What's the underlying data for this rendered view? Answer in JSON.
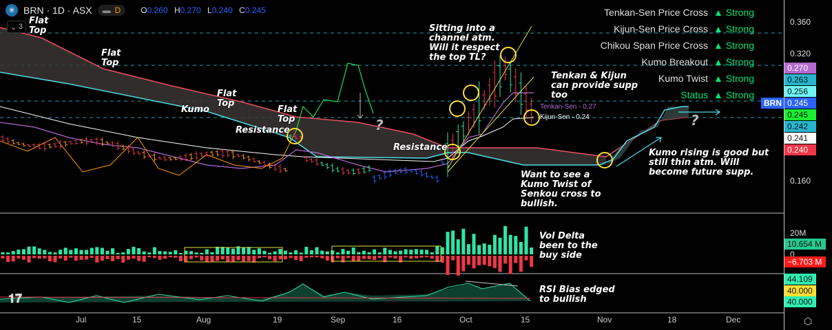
{
  "header": {
    "symbol": "BRN · 1D · ASX",
    "interval_badge": "D",
    "open_label": "O",
    "open": "0.260",
    "high_label": "H",
    "high": "0.270",
    "low_label": "L",
    "low": "0.240",
    "close_label": "C",
    "close": "0.245",
    "collapsed_count": "3"
  },
  "signals": [
    {
      "label": "Tenkan-Sen Price Cross",
      "status": "▲ Strong"
    },
    {
      "label": "Kijun-Sen Price Cross",
      "status": "▲ Strong"
    },
    {
      "label": "Chikou Span Price Cross",
      "status": "▲ Strong"
    },
    {
      "label": "Kumo Breakout",
      "status": "▲ Strong"
    },
    {
      "label": "Kumo Twist",
      "status": "▲ Strong"
    },
    {
      "label": "Status",
      "status": "▲ Strong"
    }
  ],
  "annotations": {
    "flat_top_1": "Flat\nTop",
    "flat_top_2": "Flat\nTop",
    "flat_top_3": "Flat\nTop",
    "flat_top_4": "Flat\nTop",
    "kumo": "Kumo",
    "resistance_1": "Resistance",
    "resistance_2": "Resistance",
    "question_1": "?",
    "question_2": "?",
    "channel": "Sitting into a\nchannel atm.\nWill it respect\nthe top TL?",
    "tenkan_kijun": "Tenkan & Kijun\ncan provide supp\ntoo",
    "kumo_twist": "Want to see a\nKumo Twist of\nSenkou cross to\nbullish.",
    "kumo_rising": "Kumo rising is good but\nstill thin atm. Will\nbecome future supp.",
    "vol_delta": "Vol Delta\nbeen to the\nbuy side",
    "rsi": "RSI Bias edged\nto bullish"
  },
  "line_labels": {
    "tenkan": "Tenkan-Sen - 0.27",
    "kijun": "Kijun-Sen - 0.24"
  },
  "price_axis": {
    "ticks": [
      "0.360",
      "0.320",
      "0.160"
    ],
    "tags": [
      {
        "v": "0.270",
        "bg": "#b36bd1",
        "fg": "#fff"
      },
      {
        "v": "0.263",
        "bg": "#26b6d0",
        "fg": "#111"
      },
      {
        "v": "0.256",
        "bg": "#6ef5f5",
        "fg": "#111"
      },
      {
        "v": "0.245",
        "bg": "#2962ff",
        "fg": "#fff"
      },
      {
        "v": "0.245",
        "bg": "#18f030",
        "fg": "#111"
      },
      {
        "v": "0.242",
        "bg": "#26b6d0",
        "fg": "#111"
      },
      {
        "v": "0.241",
        "bg": "#ffffff",
        "fg": "#111"
      },
      {
        "v": "0.240",
        "bg": "#f23645",
        "fg": "#fff"
      }
    ],
    "symbol_tag": "BRN"
  },
  "volume_axis": {
    "ticks": [
      "20M",
      "0"
    ],
    "buy": "10.654 M",
    "sell": "−6.703 M"
  },
  "rsi_axis": {
    "v1": "44.109",
    "v2": "40.000",
    "v3": "40.000"
  },
  "time_axis": [
    "Jul",
    "15",
    "Aug",
    "19",
    "Sep",
    "16",
    "Oct",
    "15",
    "Nov",
    "18",
    "Dec"
  ],
  "colors": {
    "up": "#2ee6a8",
    "down": "#f23645",
    "tenkan": "#b36bd1",
    "kijun": "#ffffff",
    "accent": "#2962ff"
  }
}
